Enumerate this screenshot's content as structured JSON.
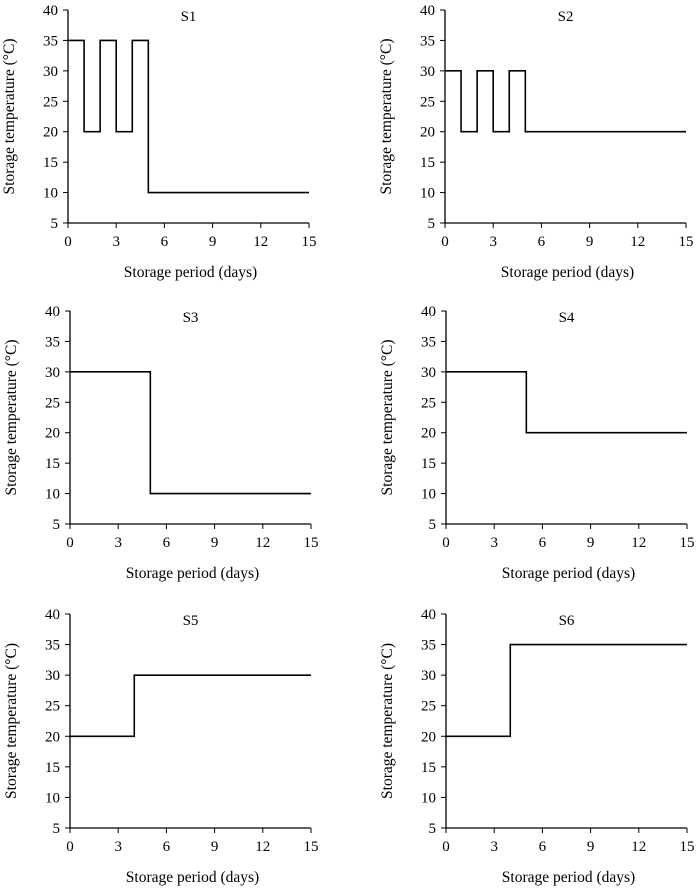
{
  "chart_data": [
    {
      "type": "line",
      "title": "S1",
      "xlabel": "Storage period (days)",
      "ylabel": "Storage temperature (°C)",
      "xlim": [
        0,
        15
      ],
      "ylim": [
        5,
        40
      ],
      "xticks": [
        "0",
        "3",
        "6",
        "9",
        "12",
        "15"
      ],
      "yticks": [
        "5",
        "10",
        "15",
        "20",
        "25",
        "30",
        "35",
        "40"
      ],
      "x": [
        0,
        1,
        1,
        2,
        2,
        3,
        3,
        4,
        4,
        5,
        5,
        15
      ],
      "y": [
        35,
        35,
        20,
        20,
        35,
        35,
        20,
        20,
        35,
        35,
        10,
        10
      ],
      "grid": false,
      "legend": "none"
    },
    {
      "type": "line",
      "title": "S2",
      "xlabel": "Storage period (days)",
      "ylabel": "Storage temperature (°C)",
      "xlim": [
        0,
        15
      ],
      "ylim": [
        5,
        40
      ],
      "xticks": [
        "0",
        "3",
        "6",
        "9",
        "12",
        "15"
      ],
      "yticks": [
        "5",
        "10",
        "15",
        "20",
        "25",
        "30",
        "35",
        "40"
      ],
      "x": [
        0,
        1,
        1,
        2,
        2,
        3,
        3,
        4,
        4,
        5,
        5,
        15
      ],
      "y": [
        30,
        30,
        20,
        20,
        30,
        30,
        20,
        20,
        30,
        30,
        20,
        20
      ],
      "grid": false,
      "legend": "none"
    },
    {
      "type": "line",
      "title": "S3",
      "xlabel": "Storage period (days)",
      "ylabel": "Storage temperature (°C)",
      "xlim": [
        0,
        15
      ],
      "ylim": [
        5,
        40
      ],
      "xticks": [
        "0",
        "3",
        "6",
        "9",
        "12",
        "15"
      ],
      "yticks": [
        "5",
        "10",
        "15",
        "20",
        "25",
        "30",
        "35",
        "40"
      ],
      "x": [
        0,
        5,
        5,
        15
      ],
      "y": [
        30,
        30,
        10,
        10
      ],
      "grid": false,
      "legend": "none"
    },
    {
      "type": "line",
      "title": "S4",
      "xlabel": "Storage period (days)",
      "ylabel": "Storage temperature (°C)",
      "xlim": [
        0,
        15
      ],
      "ylim": [
        5,
        40
      ],
      "xticks": [
        "0",
        "3",
        "6",
        "9",
        "12",
        "15"
      ],
      "yticks": [
        "5",
        "10",
        "15",
        "20",
        "25",
        "30",
        "35",
        "40"
      ],
      "x": [
        0,
        5,
        5,
        15
      ],
      "y": [
        30,
        30,
        20,
        20
      ],
      "grid": false,
      "legend": "none"
    },
    {
      "type": "line",
      "title": "S5",
      "xlabel": "Storage period (days)",
      "ylabel": "Storage temperature (°C)",
      "xlim": [
        0,
        15
      ],
      "ylim": [
        5,
        40
      ],
      "xticks": [
        "0",
        "3",
        "6",
        "9",
        "12",
        "15"
      ],
      "yticks": [
        "5",
        "10",
        "15",
        "20",
        "25",
        "30",
        "35",
        "40"
      ],
      "x": [
        0,
        4,
        4,
        15
      ],
      "y": [
        20,
        20,
        30,
        30
      ],
      "grid": false,
      "legend": "none"
    },
    {
      "type": "line",
      "title": "S6",
      "xlabel": "Storage period (days)",
      "ylabel": "Storage temperature (°C)",
      "xlim": [
        0,
        15
      ],
      "ylim": [
        5,
        40
      ],
      "xticks": [
        "0",
        "3",
        "6",
        "9",
        "12",
        "15"
      ],
      "yticks": [
        "5",
        "10",
        "15",
        "20",
        "25",
        "30",
        "35",
        "40"
      ],
      "x": [
        0,
        4,
        4,
        15
      ],
      "y": [
        20,
        20,
        35,
        35
      ],
      "grid": false,
      "legend": "none"
    }
  ]
}
